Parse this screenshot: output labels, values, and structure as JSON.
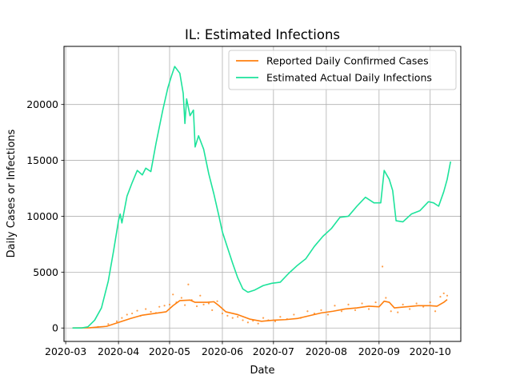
{
  "chart_data": {
    "type": "line",
    "title": "IL: Estimated Infections",
    "xlabel": "Date",
    "ylabel": "Daily Cases or Infections",
    "xlim": [
      "2020-02-29",
      "2020-10-19"
    ],
    "ylim": [
      -1200,
      25200
    ],
    "x_ticks": [
      "2020-03",
      "2020-04",
      "2020-05",
      "2020-06",
      "2020-07",
      "2020-08",
      "2020-09",
      "2020-10"
    ],
    "y_ticks": [
      0,
      5000,
      10000,
      15000,
      20000
    ],
    "y_tick_labels": [
      "0",
      "5000",
      "10000",
      "15000",
      "20000"
    ],
    "grid": true,
    "legend_position": "top-right",
    "series": [
      {
        "name": "Reported Daily Confirmed Cases",
        "color": "#ff7f0e",
        "points": [
          [
            "2020-03-05",
            0
          ],
          [
            "2020-03-15",
            20
          ],
          [
            "2020-03-25",
            150
          ],
          [
            "2020-04-01",
            500
          ],
          [
            "2020-04-08",
            850
          ],
          [
            "2020-04-15",
            1150
          ],
          [
            "2020-04-22",
            1300
          ],
          [
            "2020-04-29",
            1450
          ],
          [
            "2020-05-03",
            2000
          ],
          [
            "2020-05-07",
            2450
          ],
          [
            "2020-05-13",
            2500
          ],
          [
            "2020-05-16",
            2300
          ],
          [
            "2020-05-23",
            2300
          ],
          [
            "2020-05-27",
            2350
          ],
          [
            "2020-05-30",
            2000
          ],
          [
            "2020-06-03",
            1450
          ],
          [
            "2020-06-10",
            1200
          ],
          [
            "2020-06-17",
            800
          ],
          [
            "2020-06-24",
            600
          ],
          [
            "2020-07-01",
            700
          ],
          [
            "2020-07-08",
            750
          ],
          [
            "2020-07-15",
            850
          ],
          [
            "2020-07-22",
            1100
          ],
          [
            "2020-07-29",
            1350
          ],
          [
            "2020-08-05",
            1500
          ],
          [
            "2020-08-12",
            1700
          ],
          [
            "2020-08-19",
            1800
          ],
          [
            "2020-08-26",
            1950
          ],
          [
            "2020-09-01",
            1900
          ],
          [
            "2020-09-04",
            2400
          ],
          [
            "2020-09-07",
            2300
          ],
          [
            "2020-09-10",
            1800
          ],
          [
            "2020-09-17",
            1900
          ],
          [
            "2020-09-24",
            2000
          ],
          [
            "2020-10-01",
            2000
          ],
          [
            "2020-10-05",
            1950
          ],
          [
            "2020-10-09",
            2300
          ],
          [
            "2020-10-11",
            2550
          ]
        ]
      },
      {
        "name": "Estimated Actual Daily Infections",
        "color": "#1de39b",
        "points": [
          [
            "2020-03-05",
            0
          ],
          [
            "2020-03-10",
            0
          ],
          [
            "2020-03-14",
            100
          ],
          [
            "2020-03-18",
            700
          ],
          [
            "2020-03-22",
            1800
          ],
          [
            "2020-03-26",
            4200
          ],
          [
            "2020-03-29",
            6800
          ],
          [
            "2020-04-01",
            9600
          ],
          [
            "2020-04-02",
            10200
          ],
          [
            "2020-04-03",
            9400
          ],
          [
            "2020-04-06",
            11800
          ],
          [
            "2020-04-09",
            13000
          ],
          [
            "2020-04-12",
            14100
          ],
          [
            "2020-04-15",
            13700
          ],
          [
            "2020-04-17",
            14300
          ],
          [
            "2020-04-20",
            14000
          ],
          [
            "2020-04-23",
            16500
          ],
          [
            "2020-04-27",
            19500
          ],
          [
            "2020-04-30",
            21500
          ],
          [
            "2020-05-02",
            22500
          ],
          [
            "2020-05-04",
            23400
          ],
          [
            "2020-05-07",
            22800
          ],
          [
            "2020-05-09",
            21000
          ],
          [
            "2020-05-10",
            18300
          ],
          [
            "2020-05-11",
            20500
          ],
          [
            "2020-05-13",
            19000
          ],
          [
            "2020-05-15",
            19500
          ],
          [
            "2020-05-16",
            16200
          ],
          [
            "2020-05-18",
            17200
          ],
          [
            "2020-05-21",
            16000
          ],
          [
            "2020-05-24",
            13800
          ],
          [
            "2020-05-27",
            12000
          ],
          [
            "2020-05-30",
            10000
          ],
          [
            "2020-06-01",
            8600
          ],
          [
            "2020-06-04",
            7200
          ],
          [
            "2020-06-07",
            5800
          ],
          [
            "2020-06-10",
            4500
          ],
          [
            "2020-06-13",
            3500
          ],
          [
            "2020-06-16",
            3200
          ],
          [
            "2020-06-20",
            3400
          ],
          [
            "2020-06-25",
            3800
          ],
          [
            "2020-06-30",
            4000
          ],
          [
            "2020-07-05",
            4100
          ],
          [
            "2020-07-10",
            4900
          ],
          [
            "2020-07-15",
            5600
          ],
          [
            "2020-07-20",
            6200
          ],
          [
            "2020-07-25",
            7300
          ],
          [
            "2020-07-30",
            8200
          ],
          [
            "2020-08-04",
            8900
          ],
          [
            "2020-08-09",
            9900
          ],
          [
            "2020-08-14",
            10000
          ],
          [
            "2020-08-19",
            10900
          ],
          [
            "2020-08-24",
            11700
          ],
          [
            "2020-08-29",
            11200
          ],
          [
            "2020-09-02",
            11200
          ],
          [
            "2020-09-04",
            14100
          ],
          [
            "2020-09-07",
            13300
          ],
          [
            "2020-09-09",
            12300
          ],
          [
            "2020-09-11",
            9600
          ],
          [
            "2020-09-15",
            9500
          ],
          [
            "2020-09-20",
            10200
          ],
          [
            "2020-09-25",
            10500
          ],
          [
            "2020-09-30",
            11300
          ],
          [
            "2020-10-03",
            11200
          ],
          [
            "2020-10-06",
            10900
          ],
          [
            "2020-10-09",
            12200
          ],
          [
            "2020-10-11",
            13300
          ],
          [
            "2020-10-13",
            14900
          ]
        ]
      },
      {
        "name": "",
        "color": "#ff7f0e",
        "style": "scatter",
        "points": [
          [
            "2020-03-20",
            100
          ],
          [
            "2020-03-26",
            350
          ],
          [
            "2020-03-31",
            600
          ],
          [
            "2020-04-03",
            900
          ],
          [
            "2020-04-06",
            1200
          ],
          [
            "2020-04-09",
            1300
          ],
          [
            "2020-04-12",
            1550
          ],
          [
            "2020-04-14",
            1100
          ],
          [
            "2020-04-17",
            1700
          ],
          [
            "2020-04-20",
            1450
          ],
          [
            "2020-04-23",
            1350
          ],
          [
            "2020-04-25",
            1900
          ],
          [
            "2020-04-28",
            2000
          ],
          [
            "2020-05-01",
            2100
          ],
          [
            "2020-05-03",
            3000
          ],
          [
            "2020-05-05",
            2300
          ],
          [
            "2020-05-08",
            2700
          ],
          [
            "2020-05-10",
            2050
          ],
          [
            "2020-05-12",
            3900
          ],
          [
            "2020-05-14",
            2500
          ],
          [
            "2020-05-17",
            1950
          ],
          [
            "2020-05-19",
            2900
          ],
          [
            "2020-05-21",
            2100
          ],
          [
            "2020-05-24",
            2200
          ],
          [
            "2020-05-26",
            1600
          ],
          [
            "2020-05-29",
            2400
          ],
          [
            "2020-06-01",
            1300
          ],
          [
            "2020-06-04",
            1100
          ],
          [
            "2020-06-07",
            900
          ],
          [
            "2020-06-10",
            1000
          ],
          [
            "2020-06-13",
            700
          ],
          [
            "2020-06-16",
            500
          ],
          [
            "2020-06-19",
            650
          ],
          [
            "2020-06-22",
            400
          ],
          [
            "2020-06-25",
            900
          ],
          [
            "2020-06-28",
            700
          ],
          [
            "2020-07-02",
            600
          ],
          [
            "2020-07-05",
            1000
          ],
          [
            "2020-07-09",
            800
          ],
          [
            "2020-07-13",
            1200
          ],
          [
            "2020-07-17",
            900
          ],
          [
            "2020-07-21",
            1500
          ],
          [
            "2020-07-25",
            1300
          ],
          [
            "2020-07-29",
            1600
          ],
          [
            "2020-08-02",
            1200
          ],
          [
            "2020-08-06",
            2000
          ],
          [
            "2020-08-10",
            1500
          ],
          [
            "2020-08-14",
            2100
          ],
          [
            "2020-08-18",
            1600
          ],
          [
            "2020-08-22",
            2200
          ],
          [
            "2020-08-26",
            1700
          ],
          [
            "2020-08-30",
            2300
          ],
          [
            "2020-09-03",
            5500
          ],
          [
            "2020-09-05",
            2700
          ],
          [
            "2020-09-08",
            1500
          ],
          [
            "2020-09-12",
            1400
          ],
          [
            "2020-09-15",
            2100
          ],
          [
            "2020-09-19",
            1700
          ],
          [
            "2020-09-23",
            2200
          ],
          [
            "2020-09-27",
            1900
          ],
          [
            "2020-10-01",
            2300
          ],
          [
            "2020-10-04",
            1500
          ],
          [
            "2020-10-07",
            2800
          ],
          [
            "2020-10-09",
            3100
          ],
          [
            "2020-10-11",
            2900
          ]
        ]
      }
    ]
  }
}
